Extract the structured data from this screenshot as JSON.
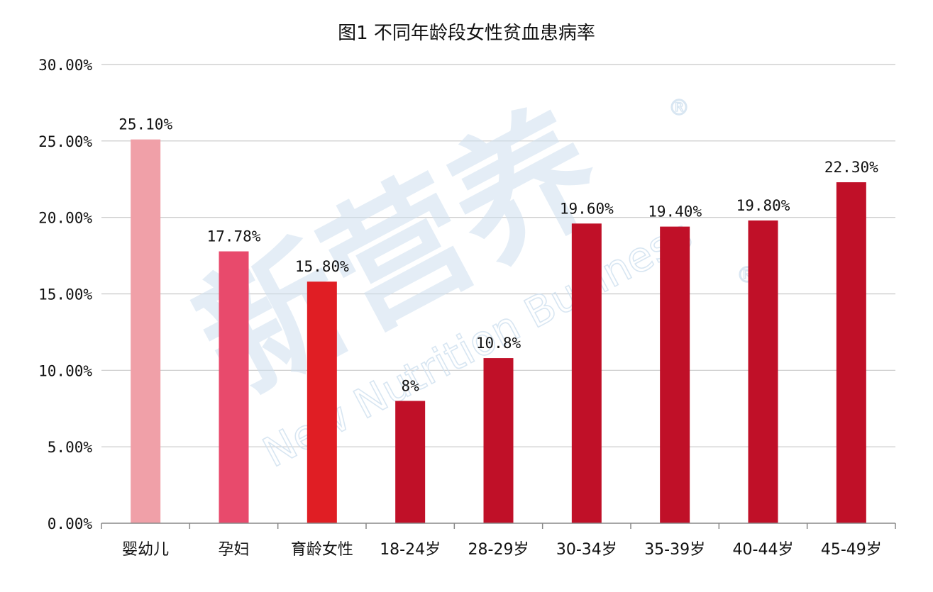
{
  "chart_data": {
    "type": "bar",
    "title": "图1 不同年龄段女性贫血患病率",
    "categories": [
      "婴幼儿",
      "孕妇",
      "育龄女性",
      "18-24岁",
      "28-29岁",
      "30-34岁",
      "35-39岁",
      "40-44岁",
      "45-49岁"
    ],
    "values": [
      25.1,
      17.78,
      15.8,
      8,
      10.8,
      19.6,
      19.4,
      19.8,
      22.3
    ],
    "data_labels": [
      "25.10%",
      "17.78%",
      "15.80%",
      "8%",
      "10.8%",
      "19.60%",
      "19.40%",
      "19.80%",
      "22.30%"
    ],
    "colors": [
      "#f0a0a8",
      "#e84a6c",
      "#e01e24",
      "#c01028",
      "#c01028",
      "#c01028",
      "#c01028",
      "#c01028",
      "#c01028"
    ],
    "y_ticks": [
      "0.00%",
      "5.00%",
      "10.00%",
      "15.00%",
      "20.00%",
      "25.00%",
      "30.00%"
    ],
    "ylim": [
      0,
      30
    ],
    "grid": true,
    "legend": "none"
  },
  "watermark": {
    "cn": "新营养",
    "en": "New Nutrition Business",
    "mark": "®"
  },
  "grid_color": "#c8c8c8",
  "axis_color": "#888888"
}
